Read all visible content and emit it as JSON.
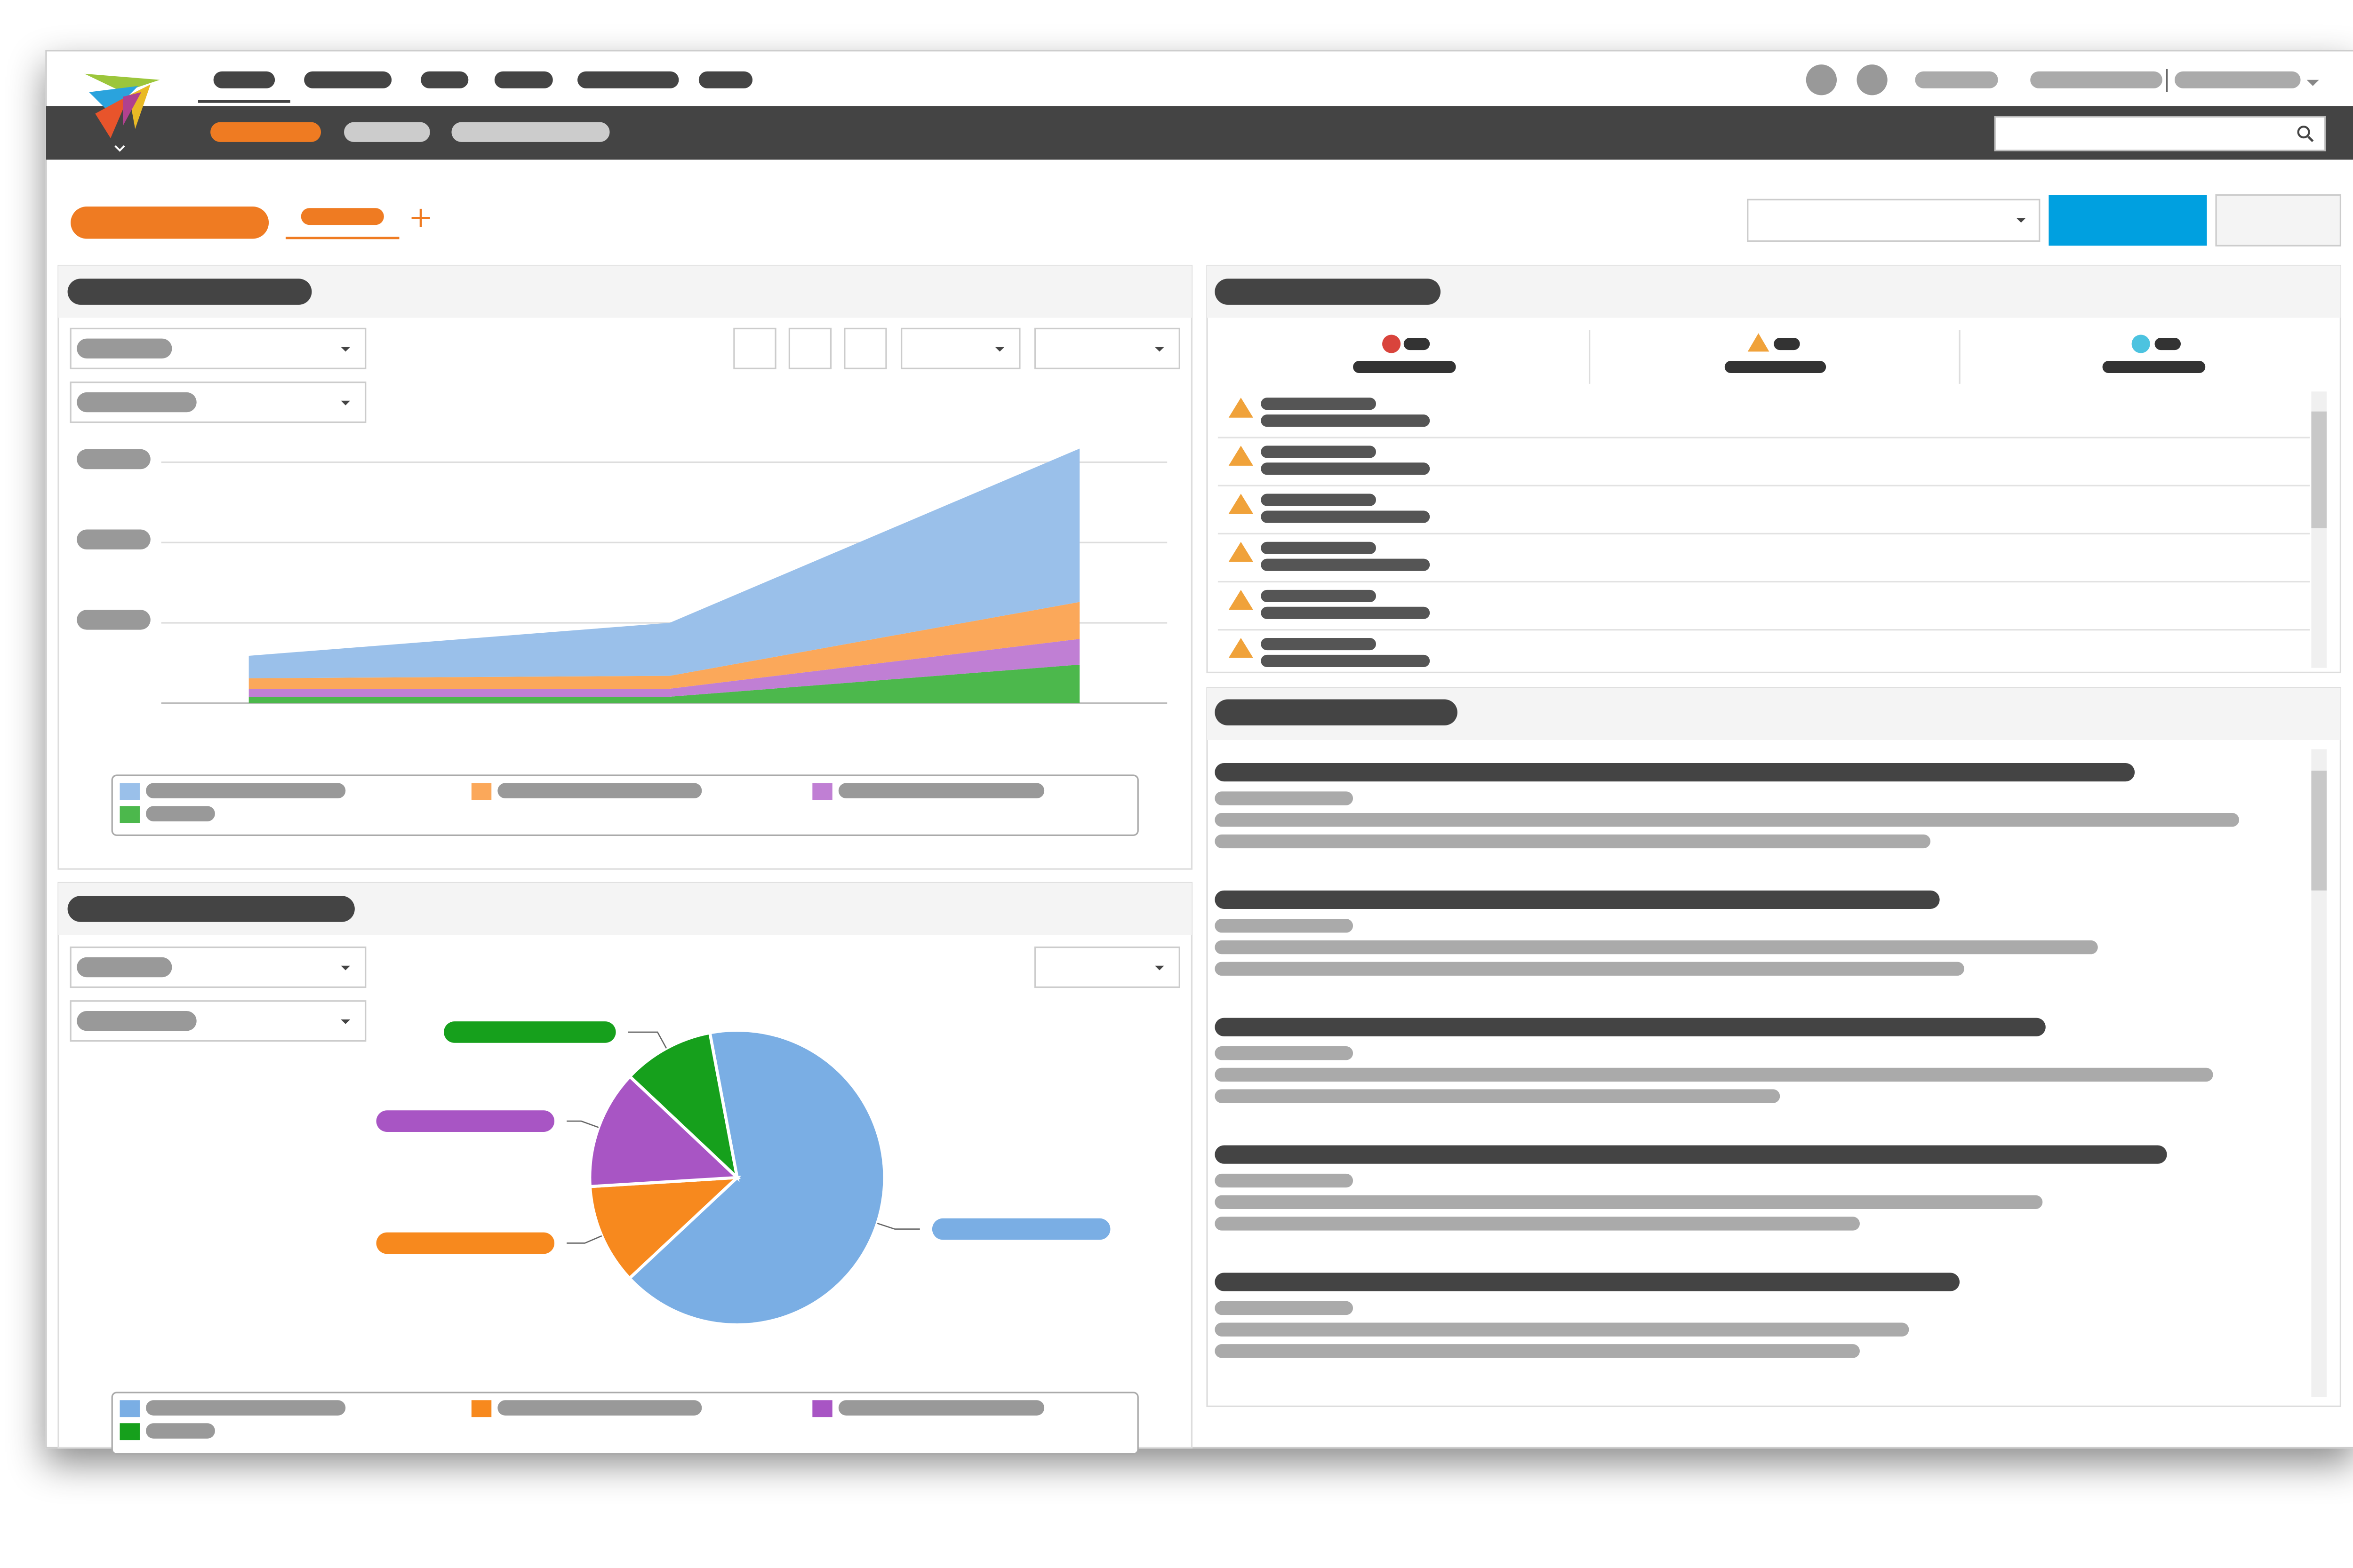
{
  "chart_data": [
    {
      "type": "area",
      "categories": [
        null,
        null,
        null
      ],
      "ylim": [
        0,
        3.2
      ],
      "yticks": [
        0,
        1,
        2,
        3
      ],
      "grid": true,
      "legend": "bottom",
      "series": [
        {
          "color": "#9ac0ea",
          "values": [
            0.28,
            0.66,
            1.91
          ]
        },
        {
          "color": "#fba85a",
          "values": [
            0.13,
            0.16,
            0.46
          ]
        },
        {
          "color": "#c07fd4",
          "values": [
            0.1,
            0.1,
            0.32
          ]
        },
        {
          "color": "#4cb84c",
          "values": [
            0.08,
            0.08,
            0.48
          ]
        }
      ]
    },
    {
      "type": "pie",
      "legend": "bottom",
      "values": [
        66,
        11,
        13,
        10
      ],
      "colors": [
        "#7aaee4",
        "#f7891e",
        "#a855c4",
        "#16a01c"
      ]
    }
  ]
}
